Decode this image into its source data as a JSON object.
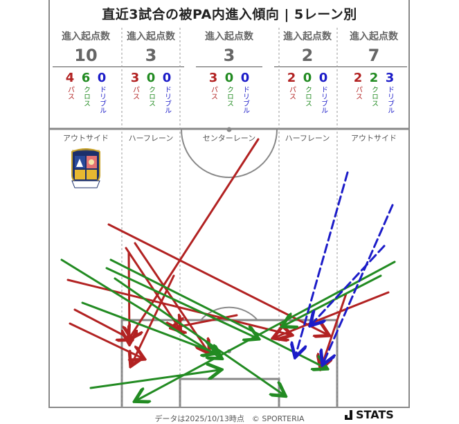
{
  "title": "直近3試合の被PA内進入傾向 | 5レーン別",
  "stat_header": "進入起点数",
  "lanes": [
    {
      "name": "アウトサイド",
      "total": "10",
      "pass": "4",
      "cross": "6",
      "dribble": "0"
    },
    {
      "name": "ハーフレーン",
      "total": "3",
      "pass": "3",
      "cross": "0",
      "dribble": "0"
    },
    {
      "name": "センターレーン",
      "total": "3",
      "pass": "3",
      "cross": "0",
      "dribble": "0"
    },
    {
      "name": "ハーフレーン",
      "total": "2",
      "pass": "2",
      "cross": "0",
      "dribble": "0"
    },
    {
      "name": "アウトサイド",
      "total": "7",
      "pass": "2",
      "cross": "2",
      "dribble": "3"
    }
  ],
  "type_labels": {
    "pass": "パス",
    "cross": "クロス",
    "dribble": "ドリブル"
  },
  "colors": {
    "pass": "#b22222",
    "cross": "#228b22",
    "dribble": "#1c1cc8",
    "field_line": "#888888"
  },
  "crest": {
    "top_text": "TEGEVAJARO",
    "bottom_text": "MIYAZAKI"
  },
  "footer": "データは2025/10/13時点　© SPORTERIA",
  "brand": "STATS"
}
